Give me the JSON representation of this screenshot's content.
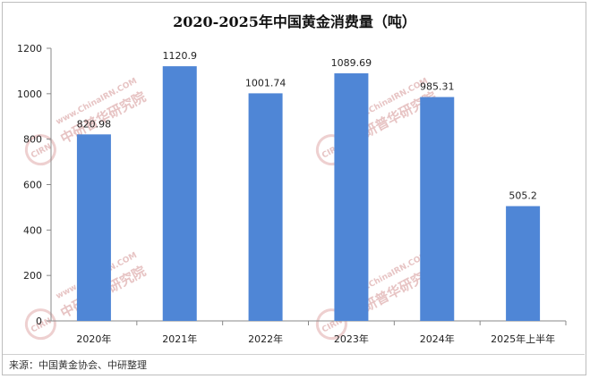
{
  "chart_data": {
    "type": "bar",
    "title": "2020-2025年中国黄金消费量（吨）",
    "categories": [
      "2020年",
      "2021年",
      "2022年",
      "2023年",
      "2024年",
      "2025年上半年"
    ],
    "values": [
      820.98,
      1120.9,
      1001.74,
      1089.69,
      985.31,
      505.2
    ],
    "value_labels": [
      "820.98",
      "1120.9",
      "1001.74",
      "1089.69",
      "985.31",
      "505.2"
    ],
    "yticks": [
      "0",
      "200",
      "400",
      "600",
      "800",
      "1000",
      "1200"
    ],
    "ylim": [
      0,
      1200
    ],
    "grid": false,
    "legend": "none",
    "bar_color": "#4f86d6"
  },
  "watermark": {
    "url": "www.ChinaIRN.COM",
    "brand": "中研普华研究院",
    "badge": "CIRN"
  },
  "source": "来源：中国黄金协会、中研整理"
}
